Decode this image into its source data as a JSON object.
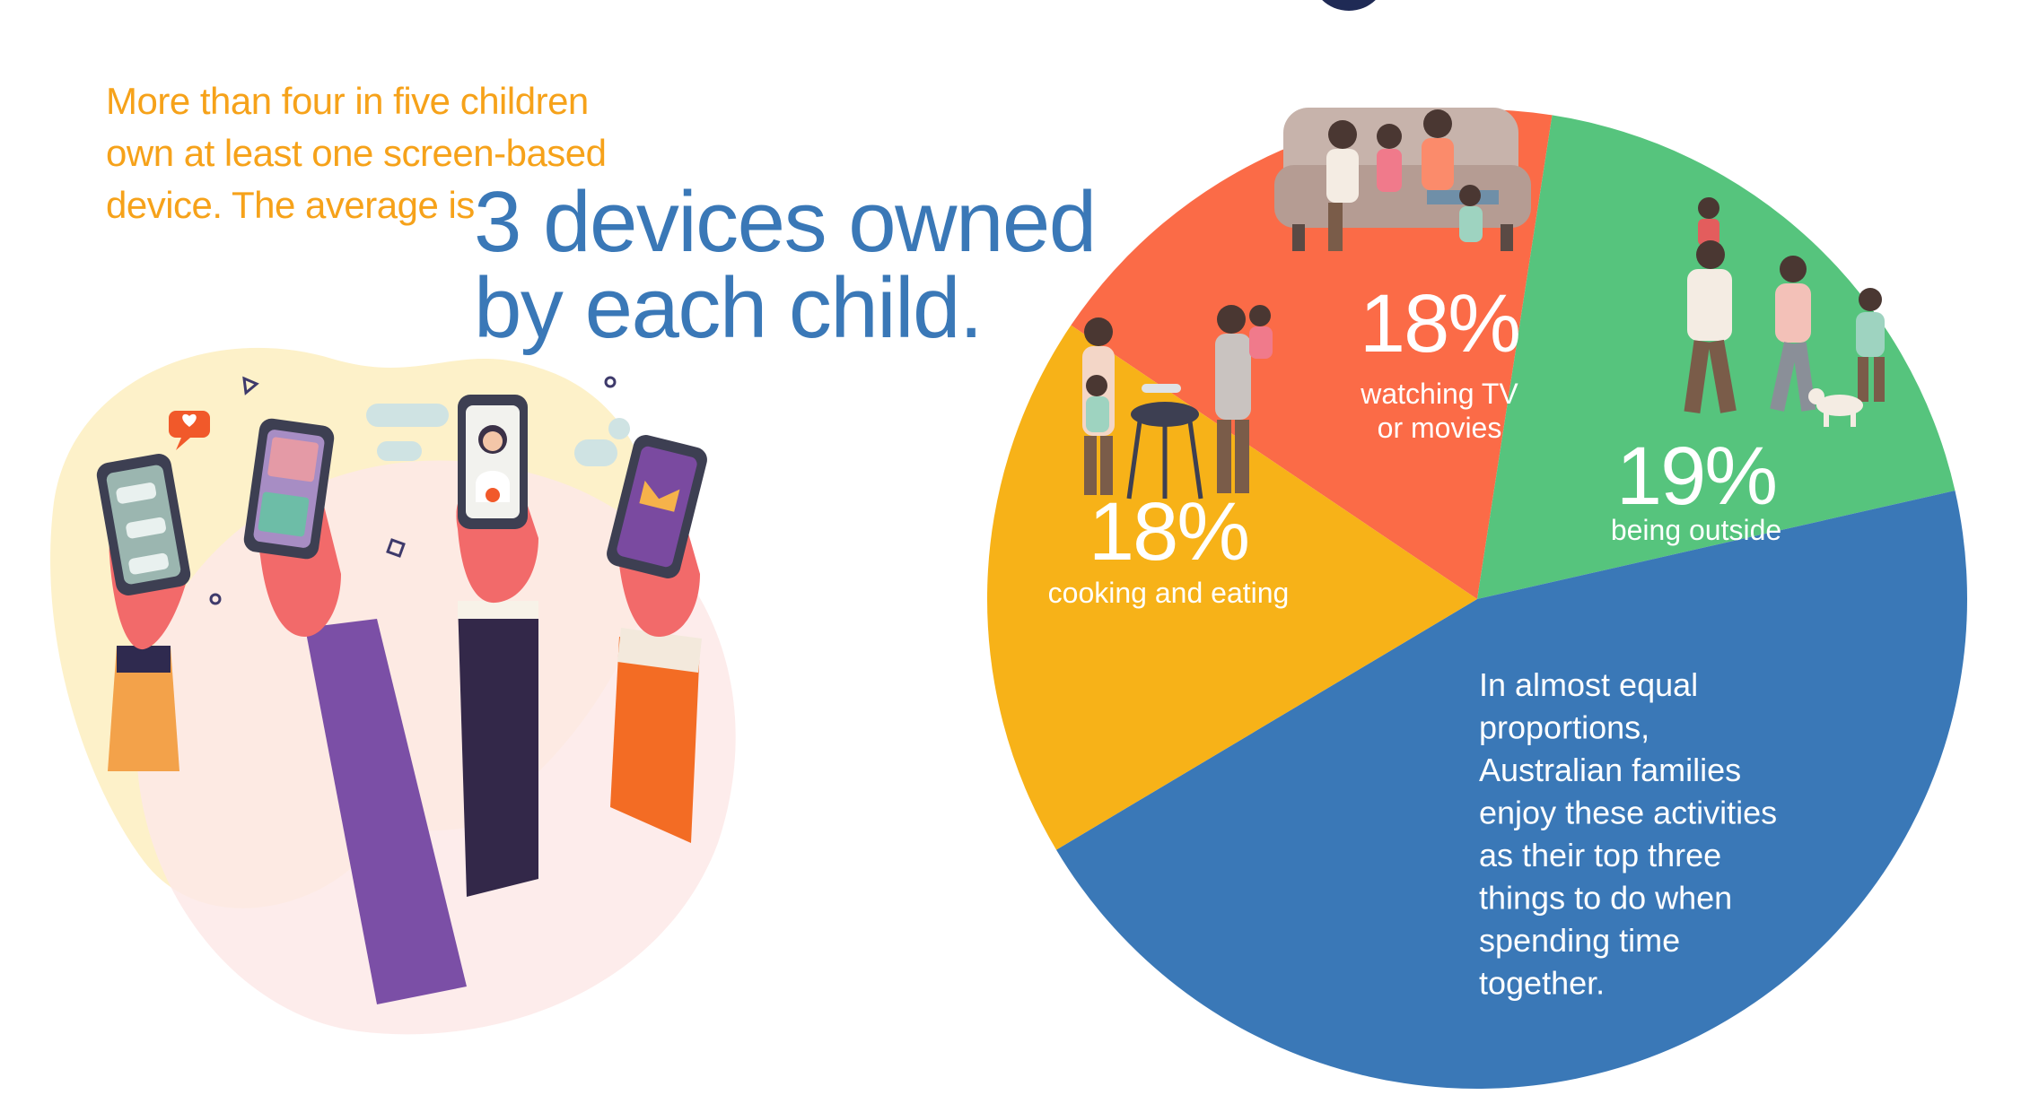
{
  "intro": {
    "line1": "More than four in five children",
    "line2": "own at least one screen-based",
    "line3": "device. The average is"
  },
  "big_stat": {
    "line1": "3 devices owned",
    "line2": "by each child."
  },
  "colors": {
    "orange_text": "#f6a21a",
    "blue_text": "#3a78b7",
    "watching_tv": "#fb6b47",
    "being_outside": "#56c47d",
    "cooking": "#f7b218",
    "rest": "#3a78b7"
  },
  "illustration": {
    "icon": "hands-holding-phones-icon"
  },
  "chart_data": {
    "type": "pie",
    "slices": [
      {
        "label": "watching TV or movies",
        "label_lines": [
          "watching TV",
          "or movies"
        ],
        "value": 18,
        "value_label": "18%",
        "color": "#fb6b47",
        "icon": "family-on-sofa-icon"
      },
      {
        "label": "being outside",
        "label_lines": [
          "being outside"
        ],
        "value": 19,
        "value_label": "19%",
        "color": "#56c47d",
        "icon": "family-walking-dog-icon"
      },
      {
        "label": "",
        "label_lines": [],
        "value": 45,
        "value_label": "",
        "color": "#3a78b7",
        "icon": ""
      },
      {
        "label": "cooking and eating",
        "label_lines": [
          "cooking and eating"
        ],
        "value": 18,
        "value_label": "18%",
        "color": "#f7b218",
        "icon": "family-barbecue-icon"
      }
    ],
    "annotation": [
      "In almost equal",
      "proportions,",
      "Australian families",
      "enjoy these activities",
      "as their top three",
      "things to do when",
      "spending time",
      "together."
    ]
  }
}
